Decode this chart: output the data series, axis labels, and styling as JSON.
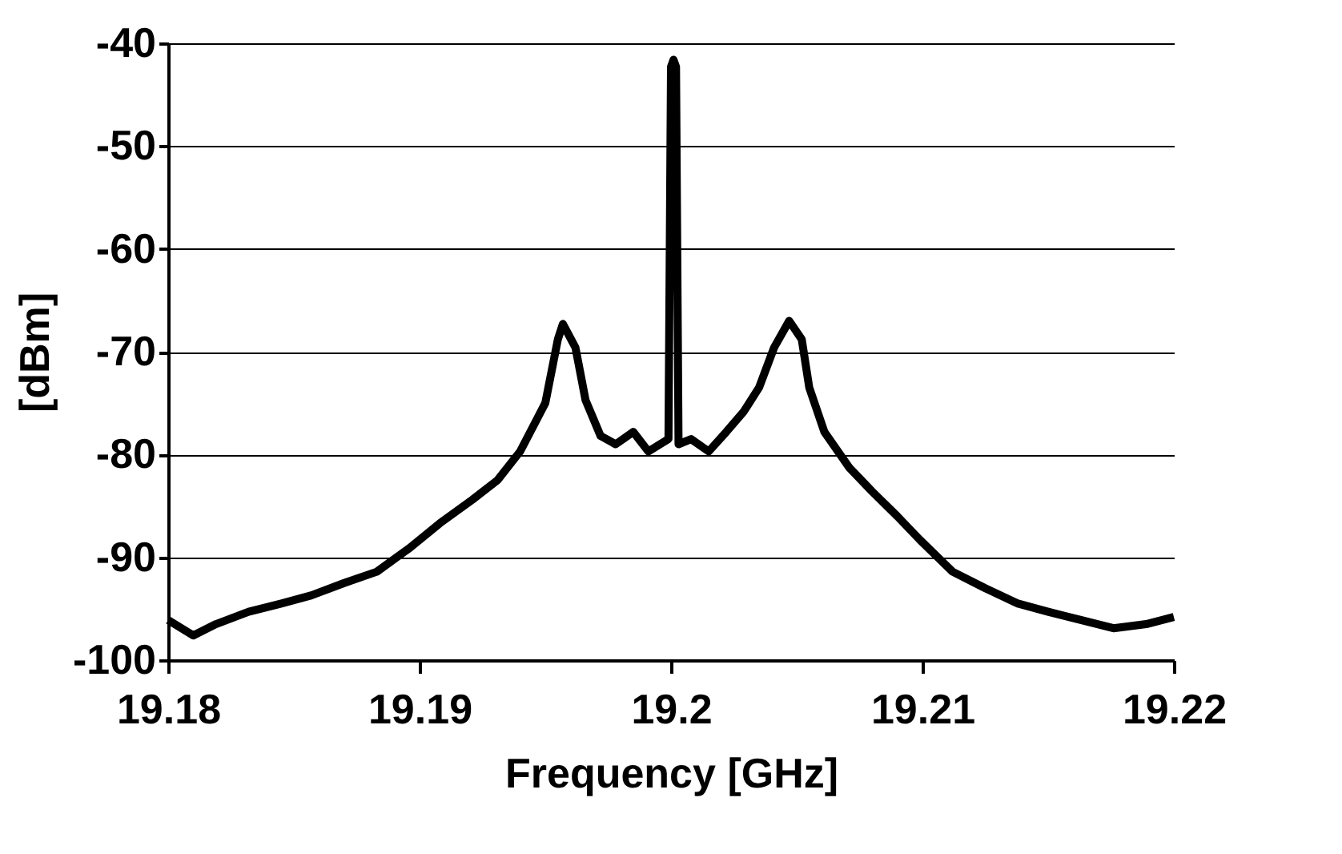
{
  "chart_data": {
    "type": "line",
    "xlabel": "Frequency [GHz]",
    "ylabel": "[dBm]",
    "xlim": [
      19.18,
      19.22
    ],
    "xticks": [
      19.18,
      19.19,
      19.2,
      19.21,
      19.22
    ],
    "ylim": [
      -100,
      -40
    ],
    "yticks": [
      -100,
      -90,
      -80,
      -70,
      -60,
      -50,
      -40
    ],
    "grid": "y",
    "series": [
      {
        "color": "#000000",
        "x": [
          19.18,
          19.181,
          19.1819,
          19.1832,
          19.1845,
          19.1857,
          19.187,
          19.1883,
          19.1896,
          19.1908,
          19.1921,
          19.1931,
          19.194,
          19.195,
          19.1955,
          19.1957,
          19.1962,
          19.1966,
          19.1972,
          19.1978,
          19.1985,
          19.1991,
          19.1999,
          19.2,
          19.2001,
          19.2002,
          19.2003,
          19.2008,
          19.2015,
          19.2022,
          19.2029,
          19.2035,
          19.2041,
          19.2047,
          19.2052,
          19.2055,
          19.2061,
          19.2071,
          19.208,
          19.209,
          19.2099,
          19.2112,
          19.2125,
          19.2138,
          19.215,
          19.2163,
          19.2176,
          19.2189,
          19.22
        ],
        "values": [
          -96.1,
          -97.6,
          -96.5,
          -95.3,
          -94.5,
          -93.7,
          -92.5,
          -91.4,
          -89.1,
          -86.7,
          -84.4,
          -82.5,
          -79.7,
          -75,
          -68.8,
          -67.3,
          -69.6,
          -74.7,
          -78.2,
          -79,
          -77.8,
          -79.7,
          -78.5,
          -42.3,
          -41.6,
          -42.3,
          -79,
          -78.5,
          -79.7,
          -77.8,
          -75.8,
          -73.5,
          -69.6,
          -67,
          -68.8,
          -73.5,
          -77.8,
          -81.3,
          -83.6,
          -86,
          -88.3,
          -91.4,
          -93,
          -94.5,
          -95.3,
          -96.1,
          -96.9,
          -96.5,
          -95.8
        ]
      }
    ]
  }
}
